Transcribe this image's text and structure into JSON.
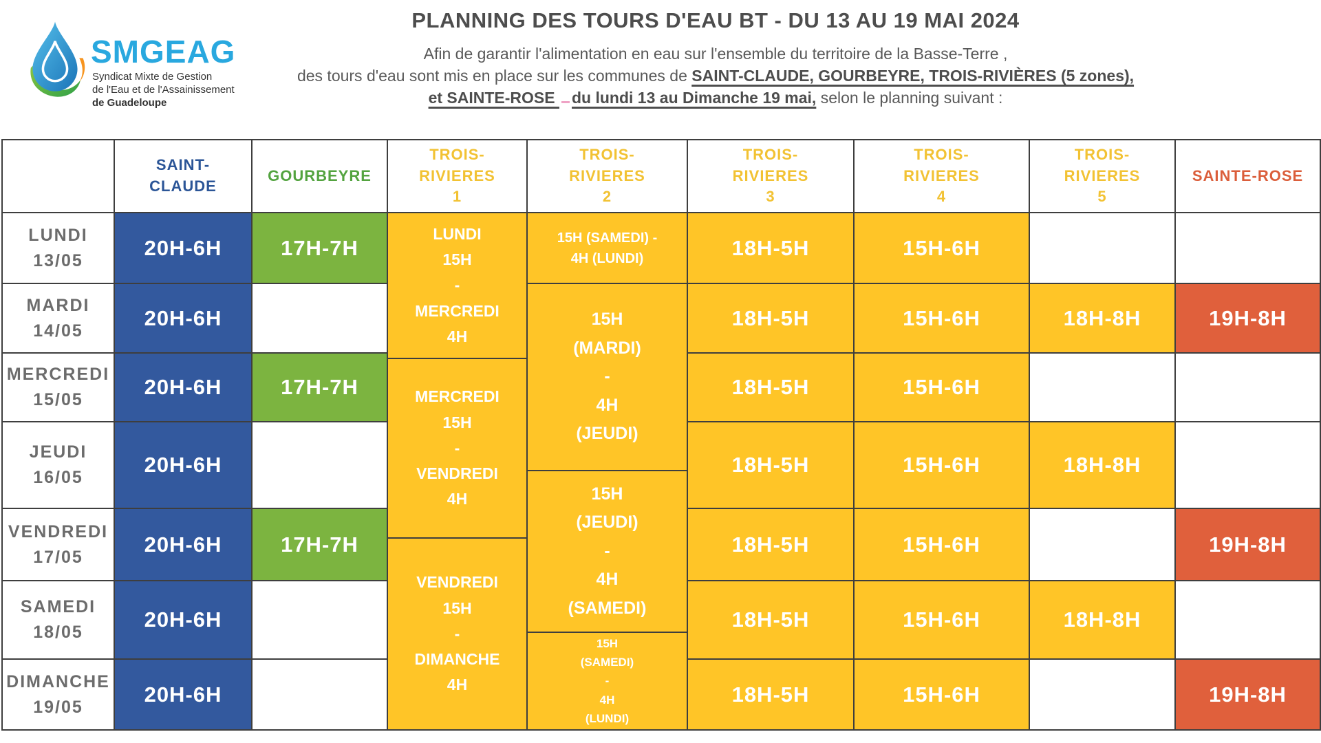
{
  "logo": {
    "brand": "SMGEAG",
    "tagline_line1": "Syndicat Mixte de Gestion",
    "tagline_line2": "de l'Eau et de l'Assainissement",
    "tagline_line3": "de Guadeloupe",
    "icon": "water-drop-leaf-icon"
  },
  "header": {
    "title": "PLANNING DES TOURS D'EAU BT - DU 13 AU 19 MAI 2024",
    "line1": "Afin de garantir l'alimentation en eau sur l'ensemble du territoire de la Basse-Terre ,",
    "line2_normal": "des tours d'eau sont mis en place sur les communes de ",
    "line2_bold": "SAINT-CLAUDE, GOURBEYRE, TROIS-RIVIÈRES (5 zones),",
    "line3_bold1": " et SAINTE-ROSE ",
    "line3_bold2": "du lundi 13 au Dimanche 19 mai,",
    "line3_normal": " selon le planning suivant :"
  },
  "colors": {
    "blue": "#33599E",
    "green": "#7CB440",
    "yellow": "#FFC527",
    "orange": "#E0603C",
    "header_blue": "#2B5597",
    "header_green": "#53A33F",
    "header_yellow": "#F2C233",
    "header_orange": "#DB5E3B",
    "day_text": "#6C6C6C",
    "title_text": "#4D4D4D",
    "logo_blue": "#29A8DF"
  },
  "table": {
    "columns": [
      {
        "key": "days",
        "label": ""
      },
      {
        "key": "saint-claude",
        "label": "SAINT-\nCLAUDE",
        "text_color": "#2B5597"
      },
      {
        "key": "gourbeyre",
        "label": "GOURBEYRE",
        "text_color": "#53A33F"
      },
      {
        "key": "trois-rivieres-1",
        "label": "TROIS-\nRIVIERES\n1",
        "text_color": "#F2C233"
      },
      {
        "key": "trois-rivieres-2",
        "label": "TROIS-\nRIVIERES\n2",
        "text_color": "#F2C233"
      },
      {
        "key": "trois-rivieres-3",
        "label": "TROIS-\nRIVIERES\n3",
        "text_color": "#F2C233"
      },
      {
        "key": "trois-rivieres-4",
        "label": "TROIS-\nRIVIERES\n4",
        "text_color": "#F2C233"
      },
      {
        "key": "trois-rivieres-5",
        "label": "TROIS-\nRIVIERES\n5",
        "text_color": "#F2C233"
      },
      {
        "key": "sainte-rose",
        "label": "SAINTE-ROSE",
        "text_color": "#DB5E3B"
      }
    ],
    "days": [
      {
        "key": "lundi",
        "label": "LUNDI",
        "date": "13/05"
      },
      {
        "key": "mardi",
        "label": "MARDI",
        "date": "14/05"
      },
      {
        "key": "mercredi",
        "label": "MERCREDI",
        "date": "15/05"
      },
      {
        "key": "jeudi",
        "label": "JEUDI",
        "date": "16/05"
      },
      {
        "key": "vendredi",
        "label": "VENDREDI",
        "date": "17/05"
      },
      {
        "key": "samedi",
        "label": "SAMEDI",
        "date": "18/05"
      },
      {
        "key": "dimanche",
        "label": "DIMANCHE",
        "date": "19/05"
      }
    ],
    "saint_claude": {
      "fill": "blue",
      "cells": [
        "20H-6H",
        "20H-6H",
        "20H-6H",
        "20H-6H",
        "20H-6H",
        "20H-6H",
        "20H-6H"
      ]
    },
    "gourbeyre": {
      "fill": "green",
      "cells": {
        "0": "17H-7H",
        "2": "17H-7H",
        "4": "17H-7H"
      }
    },
    "trois_rivieres_1": {
      "fill": "yellow",
      "blocks": [
        "LUNDI\n15H\n-\nMERCREDI\n4H",
        "MERCREDI\n15H\n-\nVENDREDI\n4H",
        "VENDREDI\n15H\n-\nDIMANCHE\n4H"
      ]
    },
    "trois_rivieres_2": {
      "fill": "yellow",
      "row1": "15H (SAMEDI) -\n4H  (LUNDI)",
      "blocks": [
        "15H\n(MARDI)\n-\n4H\n(JEUDI)",
        "15H\n(JEUDI)\n-\n4H\n(SAMEDI)",
        "15H\n(SAMEDI)\n-\n4H\n(LUNDI)"
      ]
    },
    "trois_rivieres_3": {
      "fill": "yellow",
      "cells": [
        "18H-5H",
        "18H-5H",
        "18H-5H",
        "18H-5H",
        "18H-5H",
        "18H-5H",
        "18H-5H"
      ]
    },
    "trois_rivieres_4": {
      "fill": "yellow",
      "cells": [
        "15H-6H",
        "15H-6H",
        "15H-6H",
        "15H-6H",
        "15H-6H",
        "15H-6H",
        "15H-6H"
      ]
    },
    "trois_rivieres_5": {
      "fill": "yellow",
      "cells": {
        "1": "18H-8H",
        "3": "18H-8H",
        "5": "18H-8H"
      }
    },
    "sainte_rose": {
      "fill": "orange",
      "cells": {
        "1": "19H-8H",
        "4": "19H-8H",
        "6": "19H-8H"
      }
    }
  }
}
